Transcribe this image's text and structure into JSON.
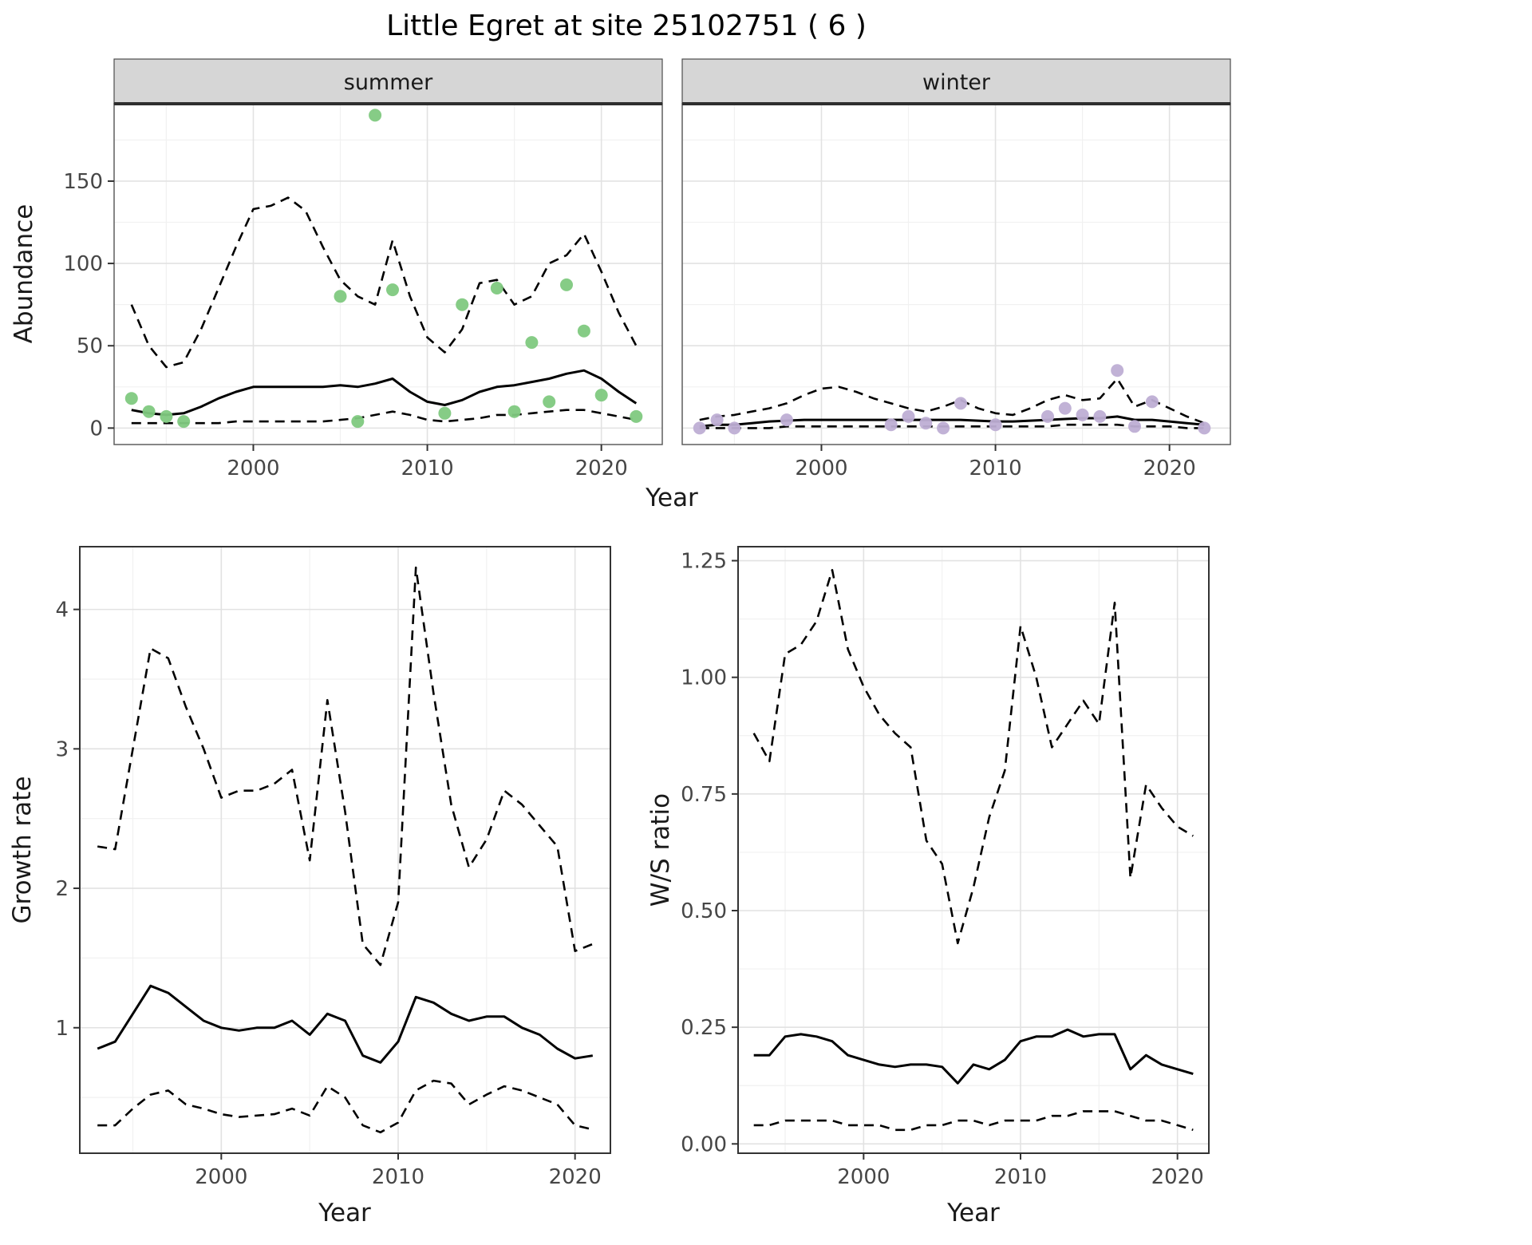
{
  "title": "Little Egret at site 25102751 ( 6 )",
  "colors": {
    "line": "#000000",
    "summer_points": "#7fc97f",
    "winter_points": "#beaed4",
    "strip_fill": "#d6d6d6",
    "strip_border": "#4d4d4d",
    "panel_border_top": "#5e5e5e",
    "panel_border_bottom": "#333333",
    "grid_major": "#e2e2e2",
    "grid_minor": "#f1f1f1",
    "tick_mark": "#333333"
  },
  "chart_data": [
    {
      "id": "abundance-summer",
      "type": "line",
      "strip_label": "summer",
      "xlabel": "Year",
      "ylabel": "Abundance",
      "xlim": [
        1992,
        2023.5
      ],
      "ylim": [
        -10,
        197
      ],
      "xticks": {
        "values": [
          2000,
          2010,
          2020
        ],
        "labels": [
          "2000",
          "2010",
          "2020"
        ]
      },
      "yticks": {
        "values": [
          0,
          50,
          100,
          150
        ],
        "labels": [
          "0",
          "50",
          "100",
          "150"
        ]
      },
      "x": [
        1993,
        1994,
        1995,
        1996,
        1997,
        1998,
        1999,
        2000,
        2001,
        2002,
        2003,
        2004,
        2005,
        2006,
        2007,
        2008,
        2009,
        2010,
        2011,
        2012,
        2013,
        2014,
        2015,
        2016,
        2017,
        2018,
        2019,
        2020,
        2021,
        2022
      ],
      "series": [
        {
          "name": "fit",
          "style": "solid",
          "values": [
            11,
            9,
            8,
            9,
            13,
            18,
            22,
            25,
            25,
            25,
            25,
            25,
            26,
            25,
            27,
            30,
            22,
            16,
            14,
            17,
            22,
            25,
            26,
            28,
            30,
            33,
            35,
            30,
            22,
            15
          ]
        },
        {
          "name": "upper_ci",
          "style": "dashed",
          "values": [
            75,
            50,
            37,
            40,
            60,
            85,
            110,
            133,
            135,
            140,
            132,
            110,
            90,
            80,
            75,
            114,
            80,
            55,
            46,
            60,
            88,
            90,
            75,
            80,
            100,
            105,
            118,
            95,
            70,
            50
          ]
        },
        {
          "name": "lower_ci",
          "style": "dashed",
          "values": [
            3,
            3,
            3,
            3,
            3,
            3,
            4,
            4,
            4,
            4,
            4,
            4,
            5,
            6,
            8,
            10,
            8,
            5,
            4,
            5,
            6,
            8,
            8,
            9,
            10,
            11,
            11,
            9,
            7,
            5
          ]
        }
      ],
      "points": {
        "name": "observed-counts",
        "color": "#7fc97f",
        "x": [
          1993,
          1994,
          1995,
          1996,
          2005,
          2006,
          2007,
          2008,
          2011,
          2012,
          2014,
          2015,
          2016,
          2017,
          2018,
          2019,
          2020,
          2022
        ],
        "y": [
          18,
          10,
          7,
          4,
          80,
          4,
          190,
          84,
          9,
          75,
          85,
          10,
          52,
          16,
          87,
          59,
          20,
          7
        ]
      }
    },
    {
      "id": "abundance-winter",
      "type": "line",
      "strip_label": "winter",
      "xlabel": "",
      "ylabel": "",
      "xlim": [
        1992,
        2023.5
      ],
      "ylim": [
        -10,
        197
      ],
      "xticks": {
        "values": [
          2000,
          2010,
          2020
        ],
        "labels": [
          "2000",
          "2010",
          "2020"
        ]
      },
      "yticks": {
        "values": [
          0,
          50,
          100,
          150
        ],
        "labels": [
          "0",
          "50",
          "100",
          "150"
        ]
      },
      "x": [
        1993,
        1994,
        1995,
        1996,
        1997,
        1998,
        1999,
        2000,
        2001,
        2002,
        2003,
        2004,
        2005,
        2006,
        2007,
        2008,
        2009,
        2010,
        2011,
        2012,
        2013,
        2014,
        2015,
        2016,
        2017,
        2018,
        2019,
        2020,
        2021,
        2022
      ],
      "series": [
        {
          "name": "fit",
          "style": "solid",
          "values": [
            1,
            2,
            2,
            3,
            4,
            4.5,
            5,
            5,
            5,
            5,
            5,
            5,
            5,
            5,
            5,
            5,
            4.5,
            4,
            4,
            4.5,
            5,
            5.5,
            6,
            6,
            7,
            5,
            5,
            4,
            3,
            2
          ]
        },
        {
          "name": "upper_ci",
          "style": "dashed",
          "values": [
            5,
            7,
            8,
            10,
            12,
            15,
            20,
            24,
            25,
            22,
            18,
            15,
            12,
            10,
            13,
            17,
            12,
            9,
            8,
            12,
            17,
            20,
            17,
            18,
            30,
            13,
            17,
            12,
            7,
            3
          ]
        },
        {
          "name": "lower_ci",
          "style": "dashed",
          "values": [
            0,
            0,
            0,
            0,
            0,
            1,
            1,
            1,
            1,
            1,
            1,
            1,
            1,
            1,
            1,
            1,
            1,
            1,
            1,
            1,
            1,
            2,
            2,
            2,
            2,
            1,
            1,
            1,
            0,
            0
          ]
        }
      ],
      "points": {
        "name": "observed-counts",
        "color": "#beaed4",
        "x": [
          1993,
          1994,
          1995,
          1998,
          2004,
          2005,
          2006,
          2007,
          2008,
          2010,
          2013,
          2014,
          2015,
          2016,
          2017,
          2018,
          2019,
          2022
        ],
        "y": [
          0,
          5,
          0,
          5,
          2,
          7,
          3,
          0,
          15,
          2,
          7,
          12,
          8,
          7,
          35,
          1,
          16,
          0
        ]
      }
    },
    {
      "id": "growth-rate",
      "type": "line",
      "strip_label": "",
      "xlabel": "Year",
      "ylabel": "Growth rate",
      "xlim": [
        1992,
        2022
      ],
      "ylim": [
        0.1,
        4.45
      ],
      "xticks": {
        "values": [
          2000,
          2010,
          2020
        ],
        "labels": [
          "2000",
          "2010",
          "2020"
        ]
      },
      "yticks": {
        "values": [
          1,
          2,
          3,
          4
        ],
        "labels": [
          "1",
          "2",
          "3",
          "4"
        ]
      },
      "x": [
        1993,
        1994,
        1995,
        1996,
        1997,
        1998,
        1999,
        2000,
        2001,
        2002,
        2003,
        2004,
        2005,
        2006,
        2007,
        2008,
        2009,
        2010,
        2011,
        2012,
        2013,
        2014,
        2015,
        2016,
        2017,
        2018,
        2019,
        2020,
        2021
      ],
      "series": [
        {
          "name": "fit",
          "style": "solid",
          "values": [
            0.85,
            0.9,
            1.1,
            1.3,
            1.25,
            1.15,
            1.05,
            1.0,
            0.98,
            1.0,
            1.0,
            1.05,
            0.95,
            1.1,
            1.05,
            0.8,
            0.75,
            0.9,
            1.22,
            1.18,
            1.1,
            1.05,
            1.08,
            1.08,
            1.0,
            0.95,
            0.85,
            0.78,
            0.8
          ]
        },
        {
          "name": "upper_ci",
          "style": "dashed",
          "values": [
            2.3,
            2.28,
            3.0,
            3.72,
            3.65,
            3.3,
            3.0,
            2.65,
            2.7,
            2.7,
            2.75,
            2.85,
            2.2,
            3.35,
            2.55,
            1.6,
            1.45,
            1.9,
            4.3,
            3.4,
            2.6,
            2.15,
            2.35,
            2.7,
            2.6,
            2.45,
            2.3,
            1.55,
            1.6
          ]
        },
        {
          "name": "lower_ci",
          "style": "dashed",
          "values": [
            0.3,
            0.3,
            0.42,
            0.52,
            0.55,
            0.45,
            0.42,
            0.38,
            0.36,
            0.37,
            0.38,
            0.42,
            0.37,
            0.58,
            0.5,
            0.3,
            0.25,
            0.32,
            0.55,
            0.62,
            0.6,
            0.45,
            0.52,
            0.58,
            0.55,
            0.5,
            0.45,
            0.3,
            0.27
          ]
        }
      ],
      "points": null
    },
    {
      "id": "ws-ratio",
      "type": "line",
      "strip_label": "",
      "xlabel": "Year",
      "ylabel": "W/S ratio",
      "xlim": [
        1992,
        2022
      ],
      "ylim": [
        -0.02,
        1.28
      ],
      "xticks": {
        "values": [
          2000,
          2010,
          2020
        ],
        "labels": [
          "2000",
          "2010",
          "2020"
        ]
      },
      "yticks": {
        "values": [
          0,
          0.25,
          0.5,
          0.75,
          1,
          1.25
        ],
        "labels": [
          "0.00",
          "0.25",
          "0.50",
          "0.75",
          "1.00",
          "1.25"
        ]
      },
      "x": [
        1993,
        1994,
        1995,
        1996,
        1997,
        1998,
        1999,
        2000,
        2001,
        2002,
        2003,
        2004,
        2005,
        2006,
        2007,
        2008,
        2009,
        2010,
        2011,
        2012,
        2013,
        2014,
        2015,
        2016,
        2017,
        2018,
        2019,
        2020,
        2021
      ],
      "series": [
        {
          "name": "fit",
          "style": "solid",
          "values": [
            0.19,
            0.19,
            0.23,
            0.235,
            0.23,
            0.22,
            0.19,
            0.18,
            0.17,
            0.165,
            0.17,
            0.17,
            0.165,
            0.13,
            0.17,
            0.16,
            0.18,
            0.22,
            0.23,
            0.23,
            0.245,
            0.23,
            0.235,
            0.235,
            0.16,
            0.19,
            0.17,
            0.16,
            0.15
          ]
        },
        {
          "name": "upper_ci",
          "style": "dashed",
          "values": [
            0.88,
            0.82,
            1.05,
            1.07,
            1.12,
            1.23,
            1.06,
            0.98,
            0.92,
            0.88,
            0.85,
            0.65,
            0.6,
            0.43,
            0.55,
            0.7,
            0.8,
            1.11,
            1.0,
            0.85,
            0.9,
            0.95,
            0.9,
            1.16,
            0.57,
            0.77,
            0.72,
            0.68,
            0.66
          ]
        },
        {
          "name": "lower_ci",
          "style": "dashed",
          "values": [
            0.04,
            0.04,
            0.05,
            0.05,
            0.05,
            0.05,
            0.04,
            0.04,
            0.04,
            0.03,
            0.03,
            0.04,
            0.04,
            0.05,
            0.05,
            0.04,
            0.05,
            0.05,
            0.05,
            0.06,
            0.06,
            0.07,
            0.07,
            0.07,
            0.06,
            0.05,
            0.05,
            0.04,
            0.03
          ]
        }
      ],
      "points": null
    }
  ]
}
